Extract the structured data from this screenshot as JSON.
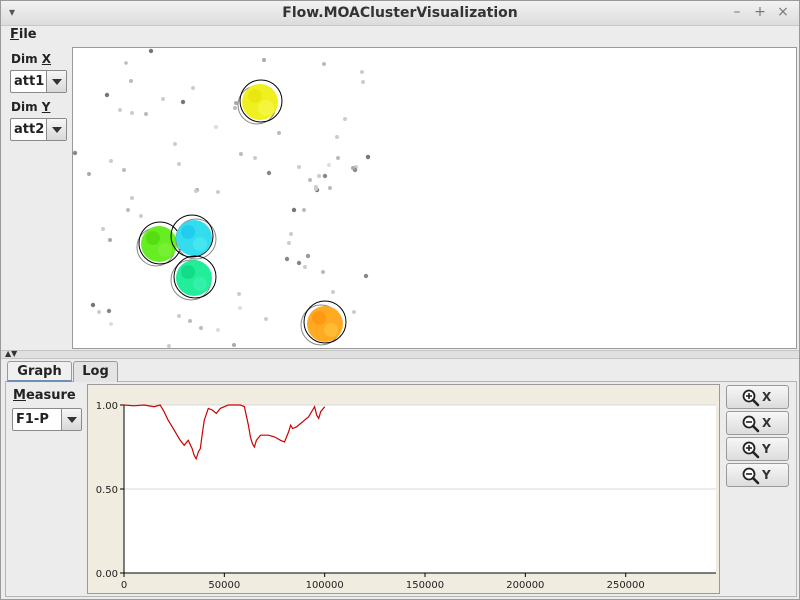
{
  "window": {
    "title": "Flow.MOAClusterVisualization",
    "controls": {
      "menu_glyph": "▾",
      "minimize": "–",
      "maximize": "+",
      "close": "×"
    }
  },
  "menu": {
    "file_mnemonic": "F",
    "file_rest": "ile"
  },
  "dimensions": {
    "x_label_prefix": "Dim ",
    "x_label_mnemonic": "X",
    "x_value": "att1",
    "y_label_prefix": "Dim ",
    "y_label_mnemonic": "Y",
    "y_value": "att2"
  },
  "clusters": [
    {
      "color": "#f0f020",
      "outline": "#000000"
    },
    {
      "color": "#66ee22",
      "outline": "#000000"
    },
    {
      "color": "#33ddee",
      "outline": "#000000"
    },
    {
      "color": "#22ee99",
      "outline": "#000000"
    },
    {
      "color": "#ffaa22",
      "outline": "#000000"
    }
  ],
  "tabs": [
    {
      "label": "Graph",
      "active": true
    },
    {
      "label": "Log",
      "active": false
    }
  ],
  "measure": {
    "label_mnemonic": "M",
    "label_rest": "easure",
    "selected": "F1-P"
  },
  "zoom_buttons": [
    {
      "icon": "zoom-in-icon",
      "axis": "X"
    },
    {
      "icon": "zoom-out-icon",
      "axis": "X"
    },
    {
      "icon": "zoom-in-icon",
      "axis": "Y"
    },
    {
      "icon": "zoom-out-icon",
      "axis": "Y"
    }
  ],
  "chart_data": {
    "type": "line",
    "xlabel": "",
    "ylabel": "",
    "xlim": [
      0,
      295000
    ],
    "ylim": [
      0,
      1.0
    ],
    "x_ticks": [
      "0",
      "50000",
      "100000",
      "150000",
      "200000",
      "250000"
    ],
    "y_ticks": [
      "1.00",
      "0.50",
      "0.00"
    ],
    "grid": "horizontal",
    "series_color": "#cc0000",
    "series": [
      {
        "x": [
          0,
          5000,
          10000,
          15000,
          18000,
          20000,
          22000,
          24000,
          26000,
          28000,
          30000,
          32000,
          34000,
          35000,
          36000,
          37000,
          38000,
          39000,
          40000,
          42000,
          44000,
          46000,
          48000,
          50000,
          52000,
          55000,
          58000,
          60000,
          62000,
          63000,
          64000,
          65000,
          66000,
          68000,
          70000,
          72000,
          75000,
          78000,
          80000,
          82000,
          83000,
          84000,
          86000,
          88000,
          90000,
          92000,
          94000,
          95000,
          96000,
          97000,
          98000,
          100000
        ],
        "values": [
          1.0,
          0.995,
          1.0,
          0.99,
          1.0,
          0.96,
          0.91,
          0.87,
          0.83,
          0.79,
          0.76,
          0.79,
          0.74,
          0.7,
          0.68,
          0.72,
          0.74,
          0.83,
          0.91,
          0.98,
          0.97,
          0.95,
          0.98,
          0.99,
          1.0,
          1.0,
          1.0,
          0.99,
          0.88,
          0.81,
          0.77,
          0.75,
          0.79,
          0.82,
          0.82,
          0.82,
          0.81,
          0.79,
          0.78,
          0.84,
          0.88,
          0.86,
          0.87,
          0.89,
          0.91,
          0.93,
          0.97,
          0.99,
          0.94,
          0.92,
          0.96,
          0.99
        ]
      }
    ]
  }
}
